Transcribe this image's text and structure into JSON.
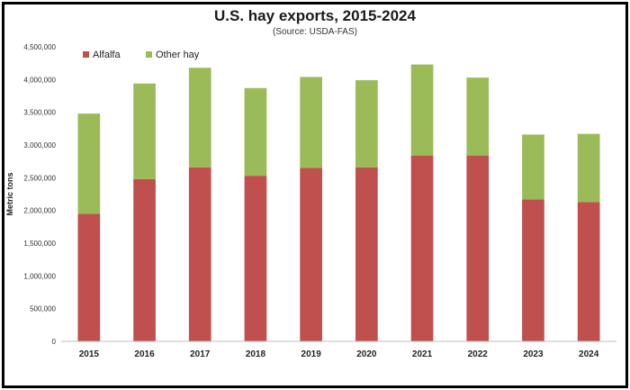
{
  "chart_data": {
    "type": "bar",
    "stacked": true,
    "title": "U.S. hay exports, 2015-2024",
    "subtitle": "(Source: USDA-FAS)",
    "ylabel": "Metric tons",
    "xlabel": "",
    "ylim": [
      0,
      4500000
    ],
    "yticks": [
      0,
      500000,
      1000000,
      1500000,
      2000000,
      2500000,
      3000000,
      3500000,
      4000000,
      4500000
    ],
    "ytick_labels": [
      "0",
      "500,000",
      "1,000,000",
      "1,500,000",
      "2,000,000",
      "2,500,000",
      "3,000,000",
      "3,500,000",
      "4,000,000",
      "4,500,000"
    ],
    "grid": false,
    "legend": "top-left",
    "categories": [
      "2015",
      "2016",
      "2017",
      "2018",
      "2019",
      "2020",
      "2021",
      "2022",
      "2023",
      "2024"
    ],
    "series": [
      {
        "name": "Alfalfa",
        "color": "#c0504d",
        "values": [
          1950000,
          2480000,
          2660000,
          2530000,
          2650000,
          2660000,
          2840000,
          2840000,
          2170000,
          2130000
        ]
      },
      {
        "name": "Other hay",
        "color": "#9bbb59",
        "values": [
          1530000,
          1460000,
          1520000,
          1340000,
          1390000,
          1330000,
          1390000,
          1190000,
          990000,
          1040000
        ]
      }
    ]
  }
}
